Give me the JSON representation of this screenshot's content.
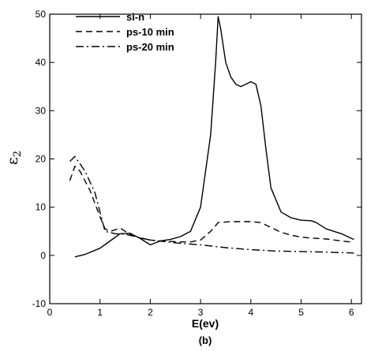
{
  "caption": "(b)",
  "chart_data": {
    "type": "line",
    "xlabel": "E(ev)",
    "ylabel": {
      "main": "ε",
      "sub": "2"
    },
    "xlim": [
      0,
      6.2
    ],
    "ylim": [
      -10,
      50
    ],
    "xticks": [
      0,
      1,
      2,
      3,
      4,
      5,
      6
    ],
    "yticks": [
      -10,
      0,
      10,
      20,
      30,
      40,
      50
    ],
    "grid": false,
    "legend_position": "top-left",
    "series": [
      {
        "name": "si-n",
        "dash": "solid",
        "x": [
          0.5,
          0.7,
          1.0,
          1.2,
          1.4,
          1.6,
          1.8,
          2.0,
          2.2,
          2.4,
          2.6,
          2.8,
          3.0,
          3.2,
          3.3,
          3.35,
          3.4,
          3.5,
          3.6,
          3.7,
          3.8,
          3.9,
          4.0,
          4.1,
          4.2,
          4.3,
          4.4,
          4.6,
          4.8,
          5.0,
          5.2,
          5.3,
          5.5,
          5.8,
          6.05
        ],
        "y": [
          -0.3,
          0.2,
          1.5,
          3.0,
          4.5,
          4.6,
          3.5,
          2.2,
          3.0,
          3.3,
          3.9,
          5.0,
          10.0,
          25.0,
          40.0,
          49.5,
          47.0,
          40.0,
          37.0,
          35.5,
          35.0,
          35.5,
          36.0,
          35.5,
          31.0,
          22.0,
          14.0,
          9.0,
          7.8,
          7.3,
          7.2,
          6.8,
          5.5,
          4.5,
          3.3
        ]
      },
      {
        "name": "ps-10 min",
        "dash": "dashed",
        "x": [
          0.4,
          0.5,
          0.6,
          0.8,
          1.0,
          1.1,
          1.2,
          1.3,
          1.4,
          1.6,
          1.8,
          2.0,
          2.2,
          2.4,
          2.6,
          2.8,
          3.0,
          3.2,
          3.35,
          3.6,
          3.8,
          4.0,
          4.2,
          4.4,
          4.6,
          4.8,
          5.0,
          5.2,
          5.5,
          5.8,
          6.05
        ],
        "y": [
          15.5,
          18.5,
          17.5,
          13.5,
          8.0,
          5.5,
          5.0,
          5.3,
          5.7,
          4.3,
          3.6,
          3.2,
          3.0,
          2.9,
          2.8,
          2.8,
          3.2,
          5.0,
          6.8,
          7.0,
          7.0,
          7.0,
          6.8,
          5.8,
          4.8,
          4.2,
          3.8,
          3.6,
          3.4,
          3.0,
          2.7
        ]
      },
      {
        "name": "ps-20 min",
        "dash": "dashdot",
        "x": [
          0.4,
          0.5,
          0.7,
          0.9,
          1.1,
          1.3,
          1.5,
          1.7,
          2.0,
          2.5,
          3.0,
          3.5,
          4.0,
          4.5,
          5.0,
          5.5,
          6.05
        ],
        "y": [
          19.5,
          20.5,
          17.5,
          13.0,
          5.0,
          4.5,
          4.4,
          3.9,
          3.2,
          2.6,
          2.2,
          1.6,
          1.2,
          0.9,
          0.8,
          0.7,
          0.5
        ]
      }
    ]
  }
}
